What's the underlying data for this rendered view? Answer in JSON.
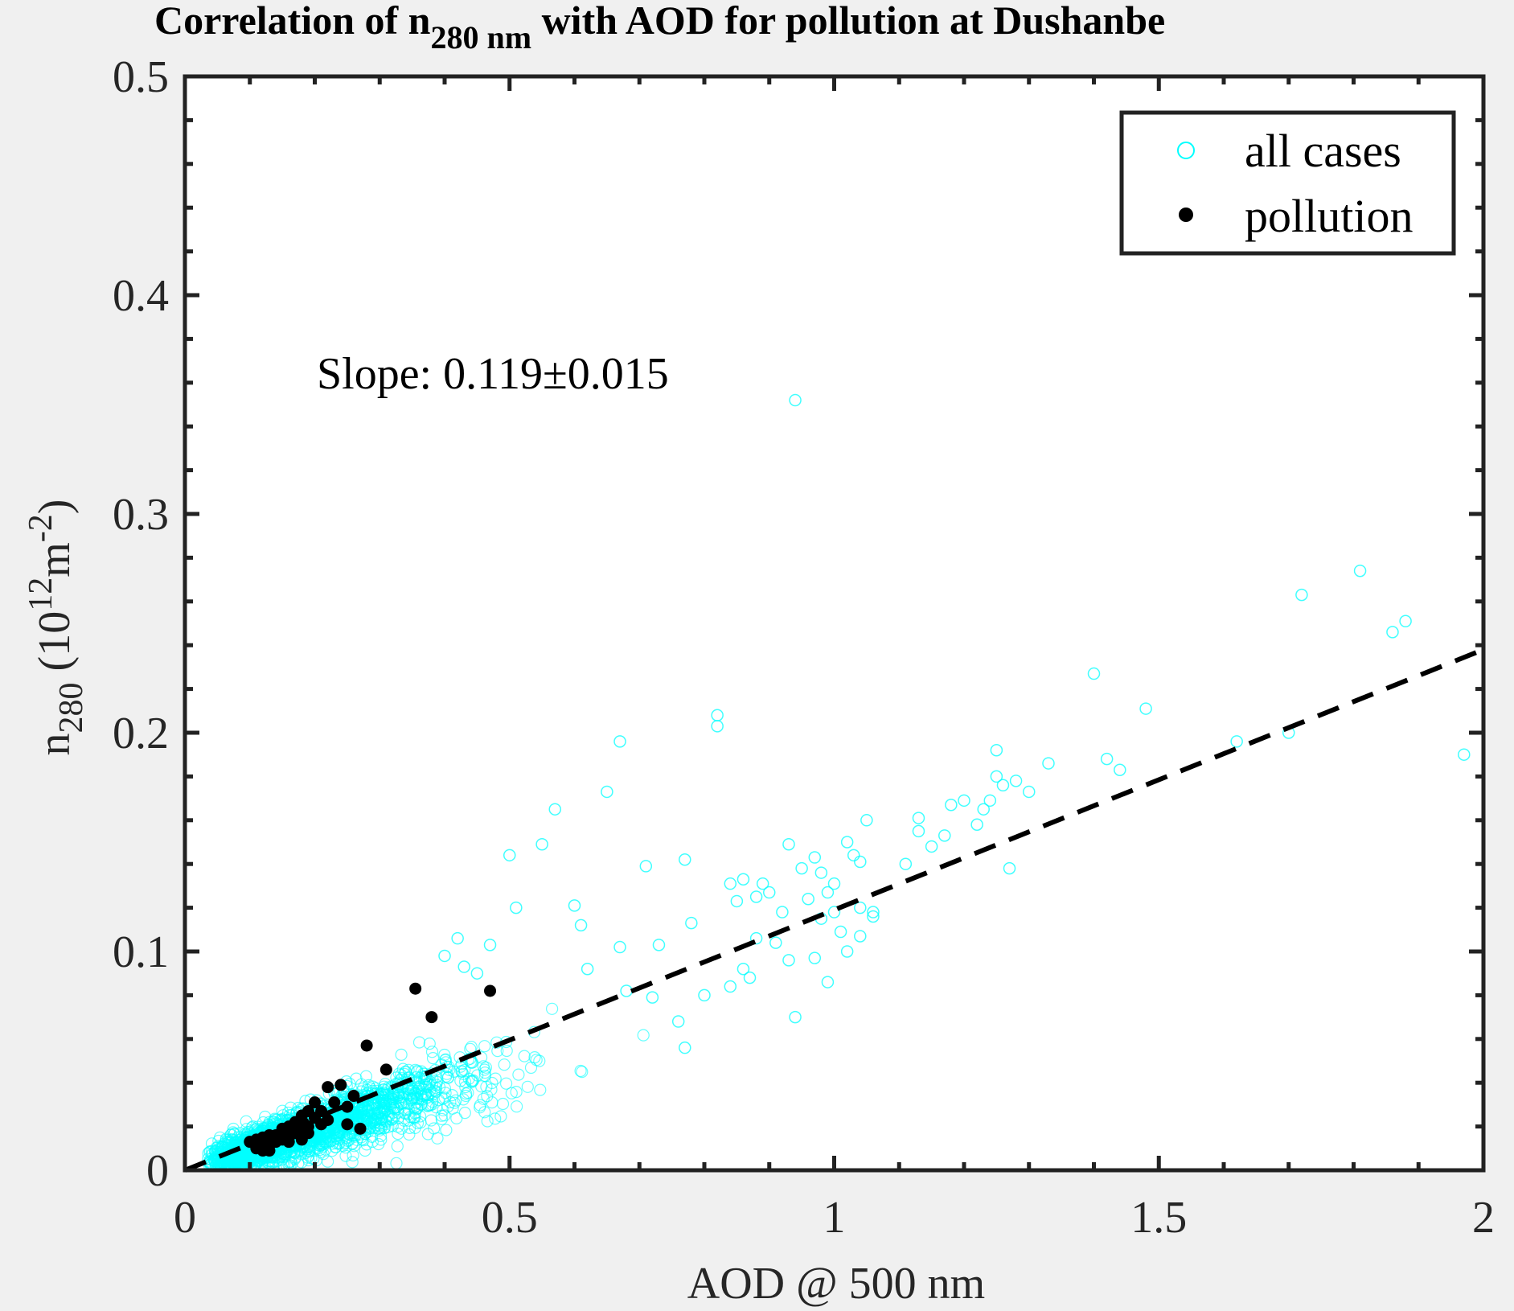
{
  "chart_data": {
    "type": "scatter",
    "title": {
      "prefix": "Correlation of n",
      "subscript": "280 nm",
      "suffix": " with AOD for pollution at Dushanbe"
    },
    "xlabel": "AOD @ 500 nm",
    "ylabel": {
      "base": "n",
      "subscript": "280",
      "unit_open": " (10",
      "unit_sup1": "12",
      "unit_mid": "m",
      "unit_sup2": "-2",
      "unit_close": ")"
    },
    "xlim": [
      0,
      2
    ],
    "ylim": [
      0,
      0.5
    ],
    "xticks": [
      0,
      0.5,
      1,
      1.5,
      2
    ],
    "xtick_labels": [
      "0",
      "0.5",
      "1",
      "1.5",
      "2"
    ],
    "yticks": [
      0,
      0.1,
      0.2,
      0.3,
      0.4,
      0.5
    ],
    "ytick_labels": [
      "0",
      "0.1",
      "0.2",
      "0.3",
      "0.4",
      "0.5"
    ],
    "grid": false,
    "legend_position": "top-right",
    "annotation": "Slope: 0.119±0.015",
    "fit_line": {
      "slope": 0.119,
      "intercept": 0,
      "style": "dashed",
      "color": "#000000"
    },
    "series": [
      {
        "name": "all cases",
        "marker": "open-circle",
        "color": "#00ffff",
        "points": [
          [
            0.94,
            0.352
          ],
          [
            0.82,
            0.208
          ],
          [
            0.82,
            0.203
          ],
          [
            0.67,
            0.196
          ],
          [
            0.65,
            0.173
          ],
          [
            0.57,
            0.165
          ],
          [
            0.55,
            0.149
          ],
          [
            0.5,
            0.144
          ],
          [
            0.71,
            0.139
          ],
          [
            0.77,
            0.142
          ],
          [
            0.51,
            0.12
          ],
          [
            0.6,
            0.121
          ],
          [
            0.61,
            0.112
          ],
          [
            0.67,
            0.102
          ],
          [
            0.73,
            0.103
          ],
          [
            0.78,
            0.113
          ],
          [
            0.62,
            0.092
          ],
          [
            0.68,
            0.082
          ],
          [
            0.72,
            0.079
          ],
          [
            0.76,
            0.068
          ],
          [
            0.8,
            0.08
          ],
          [
            0.77,
            0.056
          ],
          [
            0.42,
            0.106
          ],
          [
            0.43,
            0.093
          ],
          [
            0.47,
            0.103
          ],
          [
            0.4,
            0.098
          ],
          [
            0.45,
            0.09
          ],
          [
            0.84,
            0.131
          ],
          [
            0.86,
            0.133
          ],
          [
            0.85,
            0.123
          ],
          [
            0.88,
            0.125
          ],
          [
            0.9,
            0.127
          ],
          [
            0.92,
            0.118
          ],
          [
            0.89,
            0.131
          ],
          [
            0.93,
            0.149
          ],
          [
            0.95,
            0.138
          ],
          [
            0.97,
            0.143
          ],
          [
            0.98,
            0.136
          ],
          [
            0.99,
            0.127
          ],
          [
            1.0,
            0.131
          ],
          [
            1.02,
            0.15
          ],
          [
            1.03,
            0.144
          ],
          [
            1.04,
            0.141
          ],
          [
            1.05,
            0.16
          ],
          [
            0.96,
            0.124
          ],
          [
            0.98,
            0.115
          ],
          [
            1.0,
            0.118
          ],
          [
            1.04,
            0.12
          ],
          [
            1.06,
            0.116
          ],
          [
            1.02,
            0.1
          ],
          [
            0.97,
            0.097
          ],
          [
            0.99,
            0.086
          ],
          [
            0.94,
            0.07
          ],
          [
            0.88,
            0.106
          ],
          [
            0.86,
            0.092
          ],
          [
            0.84,
            0.084
          ],
          [
            0.87,
            0.088
          ],
          [
            0.91,
            0.104
          ],
          [
            0.93,
            0.096
          ],
          [
            1.11,
            0.14
          ],
          [
            1.13,
            0.155
          ],
          [
            1.13,
            0.161
          ],
          [
            1.17,
            0.153
          ],
          [
            1.18,
            0.167
          ],
          [
            1.2,
            0.169
          ],
          [
            1.23,
            0.165
          ],
          [
            1.25,
            0.18
          ],
          [
            1.25,
            0.192
          ],
          [
            1.26,
            0.176
          ],
          [
            1.28,
            0.178
          ],
          [
            1.3,
            0.173
          ],
          [
            1.33,
            0.186
          ],
          [
            1.27,
            0.138
          ],
          [
            1.24,
            0.169
          ],
          [
            1.22,
            0.158
          ],
          [
            1.15,
            0.148
          ],
          [
            1.4,
            0.227
          ],
          [
            1.42,
            0.188
          ],
          [
            1.44,
            0.183
          ],
          [
            1.48,
            0.211
          ],
          [
            1.62,
            0.196
          ],
          [
            1.72,
            0.263
          ],
          [
            1.81,
            0.274
          ],
          [
            1.86,
            0.246
          ],
          [
            1.88,
            0.251
          ],
          [
            1.7,
            0.2
          ],
          [
            1.97,
            0.19
          ],
          [
            1.04,
            0.107
          ],
          [
            1.06,
            0.118
          ],
          [
            1.01,
            0.109
          ]
        ]
      },
      {
        "name": "pollution",
        "marker": "filled-circle",
        "color": "#000000",
        "points": [
          [
            0.355,
            0.083
          ],
          [
            0.47,
            0.082
          ],
          [
            0.38,
            0.07
          ],
          [
            0.28,
            0.057
          ],
          [
            0.31,
            0.046
          ],
          [
            0.22,
            0.038
          ],
          [
            0.24,
            0.039
          ],
          [
            0.26,
            0.034
          ],
          [
            0.2,
            0.031
          ],
          [
            0.23,
            0.031
          ],
          [
            0.25,
            0.029
          ],
          [
            0.19,
            0.027
          ],
          [
            0.21,
            0.027
          ],
          [
            0.18,
            0.025
          ],
          [
            0.2,
            0.024
          ],
          [
            0.22,
            0.023
          ],
          [
            0.25,
            0.021
          ],
          [
            0.27,
            0.019
          ],
          [
            0.17,
            0.022
          ],
          [
            0.19,
            0.02
          ],
          [
            0.21,
            0.021
          ],
          [
            0.16,
            0.02
          ],
          [
            0.18,
            0.019
          ],
          [
            0.15,
            0.019
          ],
          [
            0.17,
            0.017
          ],
          [
            0.14,
            0.016
          ],
          [
            0.16,
            0.015
          ],
          [
            0.13,
            0.016
          ],
          [
            0.15,
            0.014
          ],
          [
            0.18,
            0.014
          ],
          [
            0.12,
            0.015
          ],
          [
            0.14,
            0.013
          ],
          [
            0.11,
            0.014
          ],
          [
            0.13,
            0.012
          ],
          [
            0.1,
            0.013
          ],
          [
            0.12,
            0.011
          ],
          [
            0.11,
            0.01
          ],
          [
            0.13,
            0.009
          ],
          [
            0.12,
            0.009
          ],
          [
            0.16,
            0.013
          ],
          [
            0.19,
            0.017
          ]
        ]
      }
    ]
  }
}
